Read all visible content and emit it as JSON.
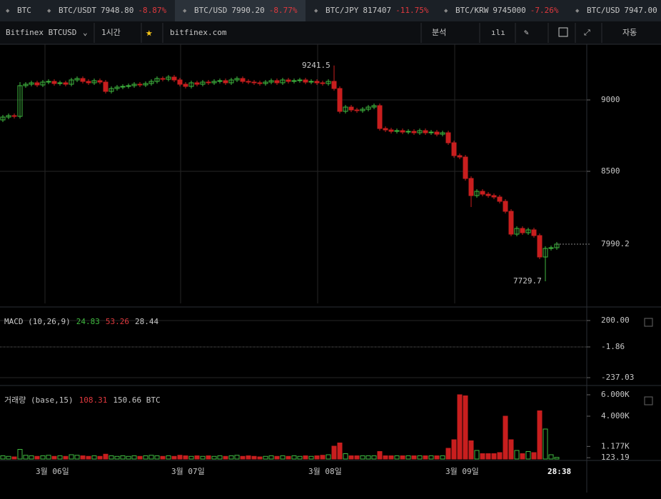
{
  "tickers": [
    {
      "symbol": "BTC"
    },
    {
      "symbol": "BTC/USDT",
      "price": "7948.80",
      "change": "-8.87%"
    },
    {
      "symbol": "BTC/USD",
      "price": "7990.20",
      "change": "-8.77%",
      "active": true
    },
    {
      "symbol": "BTC/JPY",
      "price": "817407",
      "change": "-11.75%"
    },
    {
      "symbol": "BTC/KRW",
      "price": "9745000",
      "change": "-7.26%"
    },
    {
      "symbol": "BTC/USD",
      "price": "7947.00"
    }
  ],
  "toolbar": {
    "market": "Bitfinex BTCUSD",
    "interval": "1시간",
    "site": "bitfinex.com",
    "analysis": "분석",
    "auto": "자동"
  },
  "chart_data": [
    {
      "type": "candlestick",
      "ylim": [
        7575,
        9390
      ],
      "yticks": [
        8500,
        9000
      ],
      "last_price": 7990.2,
      "last_price_label": "7990.2",
      "high_label": "9241.5",
      "low_label": "7729.7",
      "up_color": "#3fb93f",
      "down_color": "#c81e1e",
      "x_labels": [
        "3월 06일",
        "3월 07일",
        "3월 08일",
        "3월 09일",
        "28:38"
      ],
      "candles": [
        [
          8860,
          8895,
          8845,
          8880
        ],
        [
          8880,
          8905,
          8865,
          8890
        ],
        [
          8890,
          8905,
          8870,
          8885
        ],
        [
          8885,
          9125,
          8870,
          9100
        ],
        [
          9100,
          9125,
          9085,
          9110
        ],
        [
          9110,
          9135,
          9095,
          9120
        ],
        [
          9120,
          9135,
          9090,
          9105
        ],
        [
          9105,
          9140,
          9090,
          9125
        ],
        [
          9125,
          9145,
          9110,
          9130
        ],
        [
          9130,
          9145,
          9100,
          9115
        ],
        [
          9115,
          9135,
          9100,
          9120
        ],
        [
          9120,
          9135,
          9095,
          9110
        ],
        [
          9110,
          9155,
          9095,
          9140
        ],
        [
          9140,
          9165,
          9125,
          9150
        ],
        [
          9150,
          9165,
          9115,
          9130
        ],
        [
          9130,
          9145,
          9105,
          9120
        ],
        [
          9120,
          9150,
          9105,
          9135
        ],
        [
          9135,
          9150,
          9110,
          9125
        ],
        [
          9125,
          9140,
          9045,
          9060
        ],
        [
          9060,
          9095,
          9045,
          9080
        ],
        [
          9080,
          9105,
          9065,
          9090
        ],
        [
          9090,
          9110,
          9075,
          9095
        ],
        [
          9095,
          9115,
          9080,
          9100
        ],
        [
          9100,
          9125,
          9085,
          9110
        ],
        [
          9110,
          9125,
          9090,
          9105
        ],
        [
          9105,
          9130,
          9090,
          9115
        ],
        [
          9115,
          9145,
          9100,
          9130
        ],
        [
          9130,
          9165,
          9115,
          9150
        ],
        [
          9150,
          9165,
          9130,
          9145
        ],
        [
          9145,
          9175,
          9130,
          9160
        ],
        [
          9160,
          9175,
          9125,
          9140
        ],
        [
          9140,
          9155,
          9095,
          9110
        ],
        [
          9110,
          9125,
          9080,
          9095
        ],
        [
          9095,
          9135,
          9080,
          9120
        ],
        [
          9120,
          9135,
          9095,
          9110
        ],
        [
          9110,
          9140,
          9095,
          9125
        ],
        [
          9125,
          9140,
          9105,
          9120
        ],
        [
          9120,
          9145,
          9105,
          9130
        ],
        [
          9130,
          9150,
          9115,
          9135
        ],
        [
          9135,
          9150,
          9105,
          9120
        ],
        [
          9120,
          9155,
          9105,
          9140
        ],
        [
          9140,
          9165,
          9125,
          9150
        ],
        [
          9150,
          9165,
          9115,
          9130
        ],
        [
          9130,
          9145,
          9110,
          9125
        ],
        [
          9125,
          9140,
          9105,
          9120
        ],
        [
          9120,
          9135,
          9100,
          9115
        ],
        [
          9115,
          9140,
          9100,
          9125
        ],
        [
          9125,
          9150,
          9110,
          9135
        ],
        [
          9135,
          9150,
          9105,
          9120
        ],
        [
          9120,
          9155,
          9105,
          9140
        ],
        [
          9140,
          9155,
          9115,
          9130
        ],
        [
          9130,
          9150,
          9115,
          9135
        ],
        [
          9135,
          9155,
          9120,
          9140
        ],
        [
          9140,
          9155,
          9110,
          9125
        ],
        [
          9125,
          9145,
          9110,
          9130
        ],
        [
          9130,
          9145,
          9105,
          9120
        ],
        [
          9120,
          9135,
          9100,
          9115
        ],
        [
          9115,
          9145,
          9100,
          9130
        ],
        [
          9130,
          9241.5,
          9065,
          9080
        ],
        [
          9080,
          9095,
          8905,
          8920
        ],
        [
          8920,
          8965,
          8905,
          8950
        ],
        [
          8950,
          8965,
          8915,
          8930
        ],
        [
          8930,
          8945,
          8910,
          8925
        ],
        [
          8925,
          8950,
          8910,
          8935
        ],
        [
          8935,
          8965,
          8920,
          8950
        ],
        [
          8950,
          8975,
          8935,
          8960
        ],
        [
          8960,
          8975,
          8785,
          8800
        ],
        [
          8800,
          8815,
          8775,
          8790
        ],
        [
          8790,
          8805,
          8765,
          8780
        ],
        [
          8780,
          8800,
          8765,
          8785
        ],
        [
          8785,
          8800,
          8760,
          8775
        ],
        [
          8775,
          8795,
          8760,
          8780
        ],
        [
          8780,
          8795,
          8755,
          8770
        ],
        [
          8770,
          8800,
          8755,
          8785
        ],
        [
          8785,
          8800,
          8755,
          8770
        ],
        [
          8770,
          8790,
          8755,
          8775
        ],
        [
          8775,
          8790,
          8745,
          8760
        ],
        [
          8760,
          8785,
          8745,
          8770
        ],
        [
          8770,
          8785,
          8685,
          8700
        ],
        [
          8700,
          8715,
          8595,
          8610
        ],
        [
          8610,
          8625,
          8585,
          8600
        ],
        [
          8600,
          8615,
          8435,
          8450
        ],
        [
          8450,
          8465,
          8250,
          8330
        ],
        [
          8330,
          8375,
          8315,
          8360
        ],
        [
          8360,
          8375,
          8325,
          8340
        ],
        [
          8340,
          8355,
          8315,
          8330
        ],
        [
          8330,
          8345,
          8305,
          8320
        ],
        [
          8320,
          8335,
          8275,
          8290
        ],
        [
          8290,
          8305,
          8205,
          8220
        ],
        [
          8220,
          8235,
          8045,
          8060
        ],
        [
          8060,
          8115,
          8045,
          8100
        ],
        [
          8100,
          8115,
          8055,
          8070
        ],
        [
          8070,
          8105,
          8055,
          8090
        ],
        [
          8090,
          8105,
          8035,
          8050
        ],
        [
          8050,
          8065,
          7885,
          7900
        ],
        [
          7900,
          7975,
          7729.7,
          7960
        ],
        [
          7960,
          7980,
          7945,
          7965
        ],
        [
          7965,
          8005,
          7950,
          7990.2
        ]
      ]
    },
    {
      "type": "macd",
      "title": "MACD (10,26,9)",
      "macd": "24.83",
      "signal": "53.26",
      "histogram": "28.44",
      "ylim": [
        -269.6,
        265.5
      ],
      "yticks": [
        {
          "value": 200,
          "label": "200.00"
        },
        -1.86,
        -237.03
      ]
    },
    {
      "type": "volume",
      "title": "거래량 (base,15)",
      "ma": "108.31",
      "current": "150.66 BTC",
      "ylim": [
        0,
        6533
      ],
      "yticks": [
        {
          "value": 6000,
          "label": "6.000K"
        },
        {
          "value": 4000,
          "label": "4.000K"
        },
        {
          "value": 1177,
          "label": "1.177K"
        },
        123.19
      ],
      "values": [
        300,
        250,
        200,
        900,
        350,
        300,
        250,
        300,
        350,
        250,
        300,
        250,
        400,
        350,
        300,
        250,
        300,
        250,
        450,
        300,
        250,
        300,
        250,
        300,
        250,
        300,
        350,
        300,
        250,
        300,
        250,
        350,
        300,
        250,
        300,
        250,
        300,
        250,
        300,
        250,
        300,
        350,
        250,
        300,
        250,
        200,
        250,
        300,
        250,
        300,
        250,
        300,
        250,
        300,
        250,
        300,
        350,
        400,
        1200,
        1500,
        500,
        300,
        300,
        300,
        300,
        300,
        700,
        300,
        300,
        300,
        300,
        300,
        300,
        300,
        300,
        300,
        300,
        300,
        1000,
        1800,
        6000,
        5900,
        1700,
        800,
        500,
        500,
        500,
        600,
        4000,
        1800,
        800,
        500,
        700,
        600,
        4500,
        2800,
        400,
        150.66
      ]
    }
  ]
}
